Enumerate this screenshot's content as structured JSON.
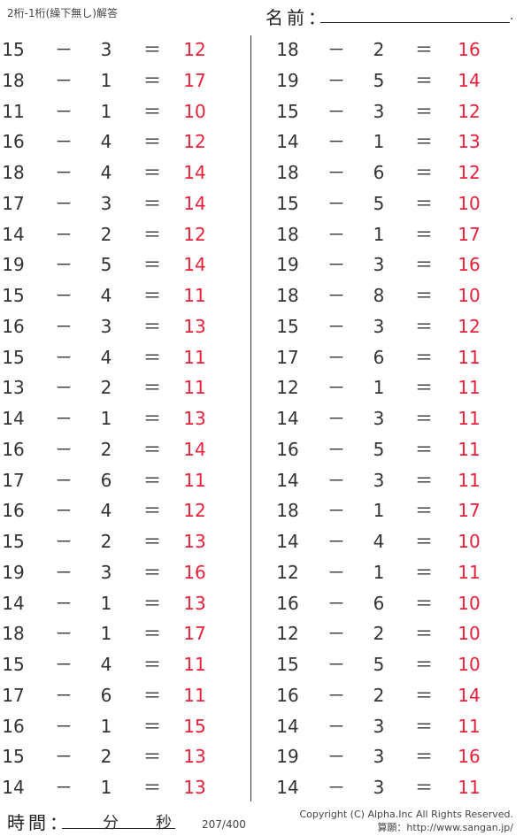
{
  "header": {
    "title": "2桁-1桁(繰下無し)解答",
    "name_label": "名前：",
    "name_end": "."
  },
  "operators": {
    "minus": "－",
    "equals": "＝"
  },
  "colors": {
    "answer": "#e8203a",
    "text": "#333333"
  },
  "left": [
    [
      15,
      3,
      12
    ],
    [
      18,
      1,
      17
    ],
    [
      11,
      1,
      10
    ],
    [
      16,
      4,
      12
    ],
    [
      18,
      4,
      14
    ],
    [
      17,
      3,
      14
    ],
    [
      14,
      2,
      12
    ],
    [
      19,
      5,
      14
    ],
    [
      15,
      4,
      11
    ],
    [
      16,
      3,
      13
    ],
    [
      15,
      4,
      11
    ],
    [
      13,
      2,
      11
    ],
    [
      14,
      1,
      13
    ],
    [
      16,
      2,
      14
    ],
    [
      17,
      6,
      11
    ],
    [
      16,
      4,
      12
    ],
    [
      15,
      2,
      13
    ],
    [
      19,
      3,
      16
    ],
    [
      14,
      1,
      13
    ],
    [
      18,
      1,
      17
    ],
    [
      15,
      4,
      11
    ],
    [
      17,
      6,
      11
    ],
    [
      16,
      1,
      15
    ],
    [
      15,
      2,
      13
    ],
    [
      14,
      1,
      13
    ]
  ],
  "right": [
    [
      18,
      2,
      16
    ],
    [
      19,
      5,
      14
    ],
    [
      15,
      3,
      12
    ],
    [
      14,
      1,
      13
    ],
    [
      18,
      6,
      12
    ],
    [
      15,
      5,
      10
    ],
    [
      18,
      1,
      17
    ],
    [
      19,
      3,
      16
    ],
    [
      18,
      8,
      10
    ],
    [
      15,
      3,
      12
    ],
    [
      17,
      6,
      11
    ],
    [
      12,
      1,
      11
    ],
    [
      14,
      3,
      11
    ],
    [
      16,
      5,
      11
    ],
    [
      14,
      3,
      11
    ],
    [
      18,
      1,
      17
    ],
    [
      14,
      4,
      10
    ],
    [
      12,
      1,
      11
    ],
    [
      16,
      6,
      10
    ],
    [
      12,
      2,
      10
    ],
    [
      15,
      5,
      10
    ],
    [
      16,
      2,
      14
    ],
    [
      14,
      3,
      11
    ],
    [
      19,
      3,
      16
    ],
    [
      14,
      3,
      11
    ]
  ],
  "footer": {
    "time_label": "時間：",
    "minutes": "分",
    "seconds": "秒",
    "page": "207/400",
    "copyright": "Copyright (C) Alpha.Inc All Rights Reserved.",
    "site": "算願：http://www.sangan.jp/"
  }
}
